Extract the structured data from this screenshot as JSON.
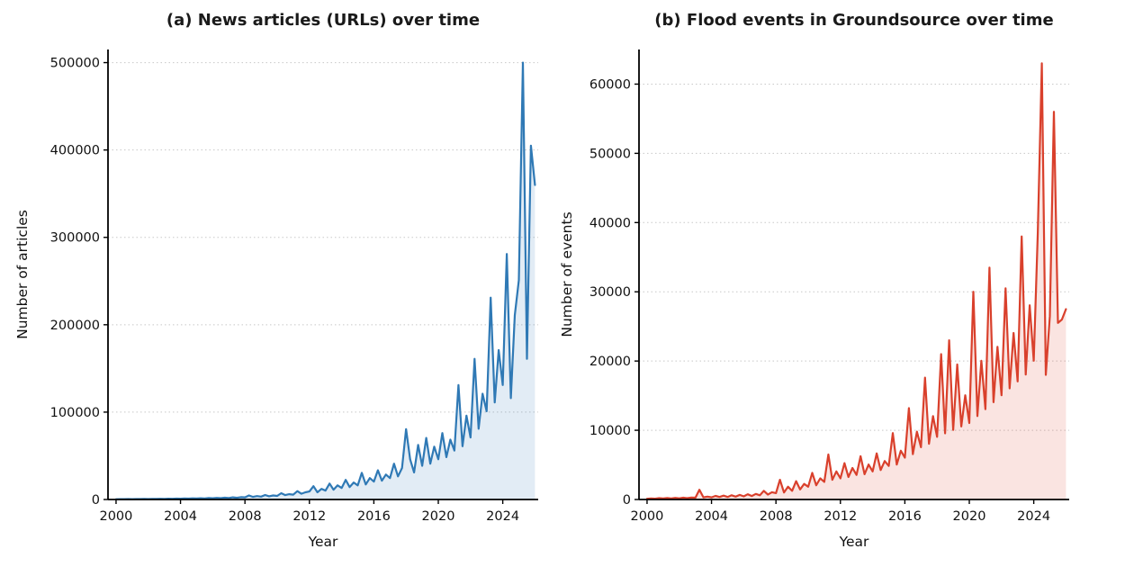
{
  "figure": {
    "background": "#ffffff",
    "text_color": "#111111",
    "grid_color": "#c8c8c8",
    "spine_color": "#000000"
  },
  "chart_data": [
    {
      "type": "line",
      "panel_label": "(a)",
      "title": "(a)  News articles (URLs) over time",
      "xlabel": "Year",
      "ylabel": "Number of articles",
      "legend": "none",
      "grid": "horizontal-dotted",
      "line_color": "#2f79b5",
      "fill_color": "#2f79b5",
      "fill_opacity": 0.14,
      "x_start": 2000.0,
      "x_step": 0.25,
      "xlim": [
        1999.5,
        2026.2
      ],
      "ylim": [
        0,
        515000
      ],
      "xticks": [
        2000,
        2004,
        2008,
        2012,
        2016,
        2020,
        2024
      ],
      "yticks": [
        0,
        100000,
        200000,
        300000,
        400000,
        500000
      ],
      "values": [
        300,
        450,
        380,
        520,
        420,
        560,
        480,
        640,
        520,
        700,
        600,
        820,
        700,
        920,
        800,
        1050,
        900,
        1150,
        1000,
        1350,
        1100,
        1450,
        1250,
        1650,
        1400,
        1850,
        1550,
        2050,
        1800,
        2450,
        2000,
        2700,
        2500,
        4600,
        3000,
        3900,
        3300,
        5200,
        3700,
        4600,
        4100,
        7200,
        5000,
        6100,
        5600,
        9600,
        6600,
        8200,
        9200,
        15200,
        8200,
        12200,
        10200,
        18200,
        11200,
        16200,
        13200,
        22500,
        14200,
        19500,
        16200,
        30500,
        17200,
        24500,
        20500,
        33500,
        21500,
        28500,
        24500,
        41000,
        26500,
        36000,
        80500,
        46000,
        31000,
        62500,
        38500,
        70500,
        41000,
        60500,
        46000,
        76000,
        48500,
        68500,
        56000,
        131000,
        61000,
        96000,
        71000,
        161000,
        81000,
        121000,
        101000,
        231000,
        111000,
        171000,
        131000,
        281000,
        116000,
        211000,
        251000,
        500000,
        161000,
        405000,
        360000
      ]
    },
    {
      "type": "line",
      "panel_label": "(b)",
      "title": "(b)  Flood events in Groundsource over time",
      "xlabel": "Year",
      "ylabel": "Number of events",
      "legend": "none",
      "grid": "horizontal-dotted",
      "line_color": "#d9402c",
      "fill_color": "#d9402c",
      "fill_opacity": 0.14,
      "x_start": 2000.0,
      "x_step": 0.25,
      "xlim": [
        1999.5,
        2026.2
      ],
      "ylim": [
        0,
        65000
      ],
      "xticks": [
        2000,
        2004,
        2008,
        2012,
        2016,
        2020,
        2024
      ],
      "yticks": [
        0,
        10000,
        20000,
        30000,
        40000,
        50000,
        60000
      ],
      "values": [
        100,
        160,
        120,
        190,
        140,
        210,
        160,
        230,
        170,
        260,
        190,
        290,
        260,
        1400,
        310,
        420,
        310,
        520,
        360,
        560,
        360,
        610,
        410,
        660,
        460,
        760,
        510,
        810,
        610,
        1250,
        710,
        1050,
        920,
        2850,
        1020,
        1850,
        1250,
        2650,
        1450,
        2250,
        1850,
        3850,
        2050,
        3050,
        2550,
        6500,
        2850,
        4050,
        3050,
        5250,
        3250,
        4550,
        3550,
        6250,
        3650,
        5050,
        4050,
        6650,
        4250,
        5550,
        4850,
        9600,
        5050,
        7050,
        6050,
        13200,
        6550,
        9800,
        7550,
        17600,
        8050,
        12050,
        9050,
        21000,
        9550,
        23000,
        10050,
        19500,
        10550,
        15050,
        11050,
        30000,
        12050,
        20050,
        13050,
        33500,
        14050,
        22050,
        15050,
        30500,
        16050,
        24050,
        17050,
        38000,
        18050,
        28050,
        20050,
        38500,
        63000,
        18000,
        26500,
        56000,
        25500,
        26000,
        27500
      ]
    }
  ]
}
